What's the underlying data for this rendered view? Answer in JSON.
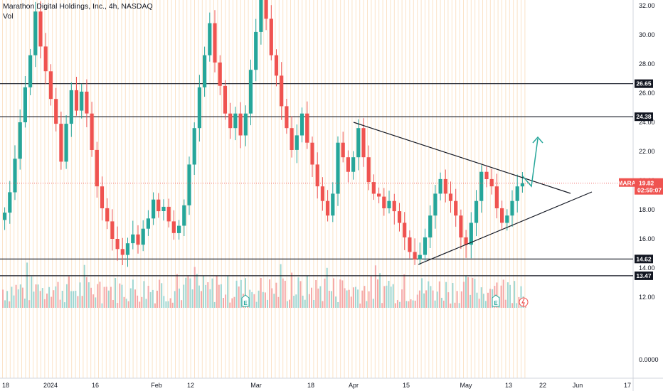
{
  "header": {
    "title": "Marathon Digital Holdings, Inc., 4h, NASDAQ",
    "volume_label": "Vol"
  },
  "colors": {
    "up": "#26a69a",
    "down": "#ef5350",
    "vol_up": "#9fd7d2",
    "vol_down": "#f5a9a8",
    "grid_bar": "#fbe3c8",
    "level_line": "#131722",
    "trend_line": "#131722",
    "arrow": "#26a69a",
    "price_tag": "#ef5350",
    "level_tag": "#131722"
  },
  "chart_data": {
    "type": "candlestick",
    "symbol": "MARA",
    "y_ticks": [
      "32.00",
      "30.00",
      "28.00",
      "26.00",
      "24.00",
      "22.00",
      "20.00",
      "18.00",
      "16.00",
      "14.00",
      "12.00",
      "0.0000"
    ],
    "x_ticks": [
      "18",
      "2024",
      "16",
      "Feb",
      "12",
      "Mar",
      "18",
      "Apr",
      "15",
      "May",
      "13",
      "22",
      "Jun",
      "17"
    ],
    "horizontal_levels": [
      "26.65",
      "24.38",
      "14.62",
      "13.47"
    ],
    "last_price": "19.82",
    "countdown": "02:59:07",
    "markers": [
      "E",
      "E",
      "lightning"
    ],
    "ohlc_path": [
      [
        17.3,
        17.8
      ],
      [
        17.8,
        19.2
      ],
      [
        19.2,
        21.5
      ],
      [
        21.5,
        24.0
      ],
      [
        24.0,
        26.4
      ],
      [
        26.4,
        28.6
      ],
      [
        28.6,
        31.6
      ],
      [
        31.6,
        29.2
      ],
      [
        29.2,
        27.5
      ],
      [
        27.5,
        25.6
      ],
      [
        25.6,
        23.9
      ],
      [
        23.9,
        21.3
      ],
      [
        21.3,
        23.9
      ],
      [
        23.9,
        26.2
      ],
      [
        26.2,
        24.8
      ],
      [
        24.8,
        26.1
      ],
      [
        26.1,
        24.6
      ],
      [
        24.6,
        22.1
      ],
      [
        22.1,
        19.6
      ],
      [
        19.6,
        18.1
      ],
      [
        18.1,
        17.2
      ],
      [
        17.2,
        16.0
      ],
      [
        16.0,
        15.3
      ],
      [
        15.3,
        14.9
      ],
      [
        14.9,
        15.7
      ],
      [
        15.7,
        16.3
      ],
      [
        16.3,
        15.6
      ],
      [
        15.6,
        16.7
      ],
      [
        16.7,
        17.4
      ],
      [
        17.4,
        18.7
      ],
      [
        18.7,
        17.9
      ],
      [
        17.9,
        18.2
      ],
      [
        18.2,
        17.2
      ],
      [
        17.2,
        16.4
      ],
      [
        16.4,
        16.9
      ],
      [
        16.9,
        18.3
      ],
      [
        18.3,
        21.1
      ],
      [
        21.1,
        23.6
      ],
      [
        23.6,
        26.4
      ],
      [
        26.4,
        28.6
      ],
      [
        28.6,
        30.8
      ],
      [
        30.8,
        28.1
      ],
      [
        28.1,
        26.5
      ],
      [
        26.5,
        24.6
      ],
      [
        24.6,
        23.6
      ],
      [
        23.6,
        24.6
      ],
      [
        24.6,
        23.1
      ],
      [
        23.1,
        24.6
      ],
      [
        24.6,
        27.6
      ],
      [
        27.6,
        30.2
      ],
      [
        30.2,
        33.1
      ],
      [
        33.1,
        31.1
      ],
      [
        31.1,
        28.6
      ],
      [
        28.6,
        27.2
      ],
      [
        27.2,
        25.1
      ],
      [
        25.1,
        23.6
      ],
      [
        23.6,
        22.1
      ],
      [
        22.1,
        23.1
      ],
      [
        23.1,
        24.6
      ],
      [
        24.6,
        22.6
      ],
      [
        22.6,
        21.1
      ],
      [
        21.1,
        19.6
      ],
      [
        19.6,
        18.6
      ],
      [
        18.6,
        17.6
      ],
      [
        17.6,
        19.1
      ],
      [
        19.1,
        22.6
      ],
      [
        22.6,
        21.6
      ],
      [
        21.6,
        20.6
      ],
      [
        20.6,
        21.6
      ],
      [
        21.6,
        23.6
      ],
      [
        23.6,
        21.6
      ],
      [
        21.6,
        19.9
      ],
      [
        19.9,
        19.1
      ],
      [
        19.1,
        18.9
      ],
      [
        18.9,
        18.1
      ],
      [
        18.1,
        18.6
      ],
      [
        18.6,
        17.9
      ],
      [
        17.9,
        17.1
      ],
      [
        17.1,
        16.1
      ],
      [
        16.1,
        15.1
      ],
      [
        15.1,
        14.6
      ],
      [
        14.6,
        14.9
      ],
      [
        14.9,
        16.1
      ],
      [
        16.1,
        17.6
      ],
      [
        17.6,
        19.1
      ],
      [
        19.1,
        20.1
      ],
      [
        20.1,
        19.1
      ],
      [
        19.1,
        18.6
      ],
      [
        18.6,
        17.6
      ],
      [
        17.6,
        16.1
      ],
      [
        16.1,
        15.6
      ],
      [
        15.6,
        17.1
      ],
      [
        17.1,
        18.6
      ],
      [
        18.6,
        20.6
      ],
      [
        20.6,
        20.1
      ],
      [
        20.1,
        19.6
      ],
      [
        19.6,
        18.1
      ],
      [
        18.1,
        17.1
      ],
      [
        17.1,
        17.6
      ],
      [
        17.6,
        18.6
      ],
      [
        18.6,
        19.6
      ],
      [
        19.6,
        19.82
      ]
    ]
  }
}
